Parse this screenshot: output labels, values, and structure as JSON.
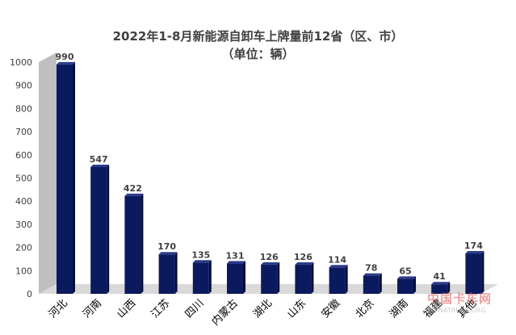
{
  "chart_data": {
    "type": "bar",
    "title": "2022年1-8月新能源自卸车上牌量前12省（区、市）",
    "subtitle": "（单位：辆）",
    "categories": [
      "河北",
      "河南",
      "山西",
      "江苏",
      "四川",
      "内蒙古",
      "湖北",
      "山东",
      "安徽",
      "北京",
      "湖南",
      "福建",
      "其他"
    ],
    "values": [
      990,
      547,
      422,
      170,
      135,
      131,
      126,
      126,
      114,
      78,
      65,
      41,
      174
    ],
    "ylim": [
      0,
      1000
    ],
    "yticks": [
      0,
      100,
      200,
      300,
      400,
      500,
      600,
      700,
      800,
      900,
      1000
    ],
    "xlabel": "",
    "ylabel": "",
    "grid": false,
    "legend": "none",
    "colors": {
      "bar_front": "#0b1a5e",
      "bar_side": "#050d36",
      "bar_top": "#2a3a8c",
      "wall": "#bfbfbf",
      "text": "#404040"
    }
  },
  "watermark": {
    "text_zh": "中国卡车网",
    "text_en": "CHINATRUCK.ORG"
  }
}
